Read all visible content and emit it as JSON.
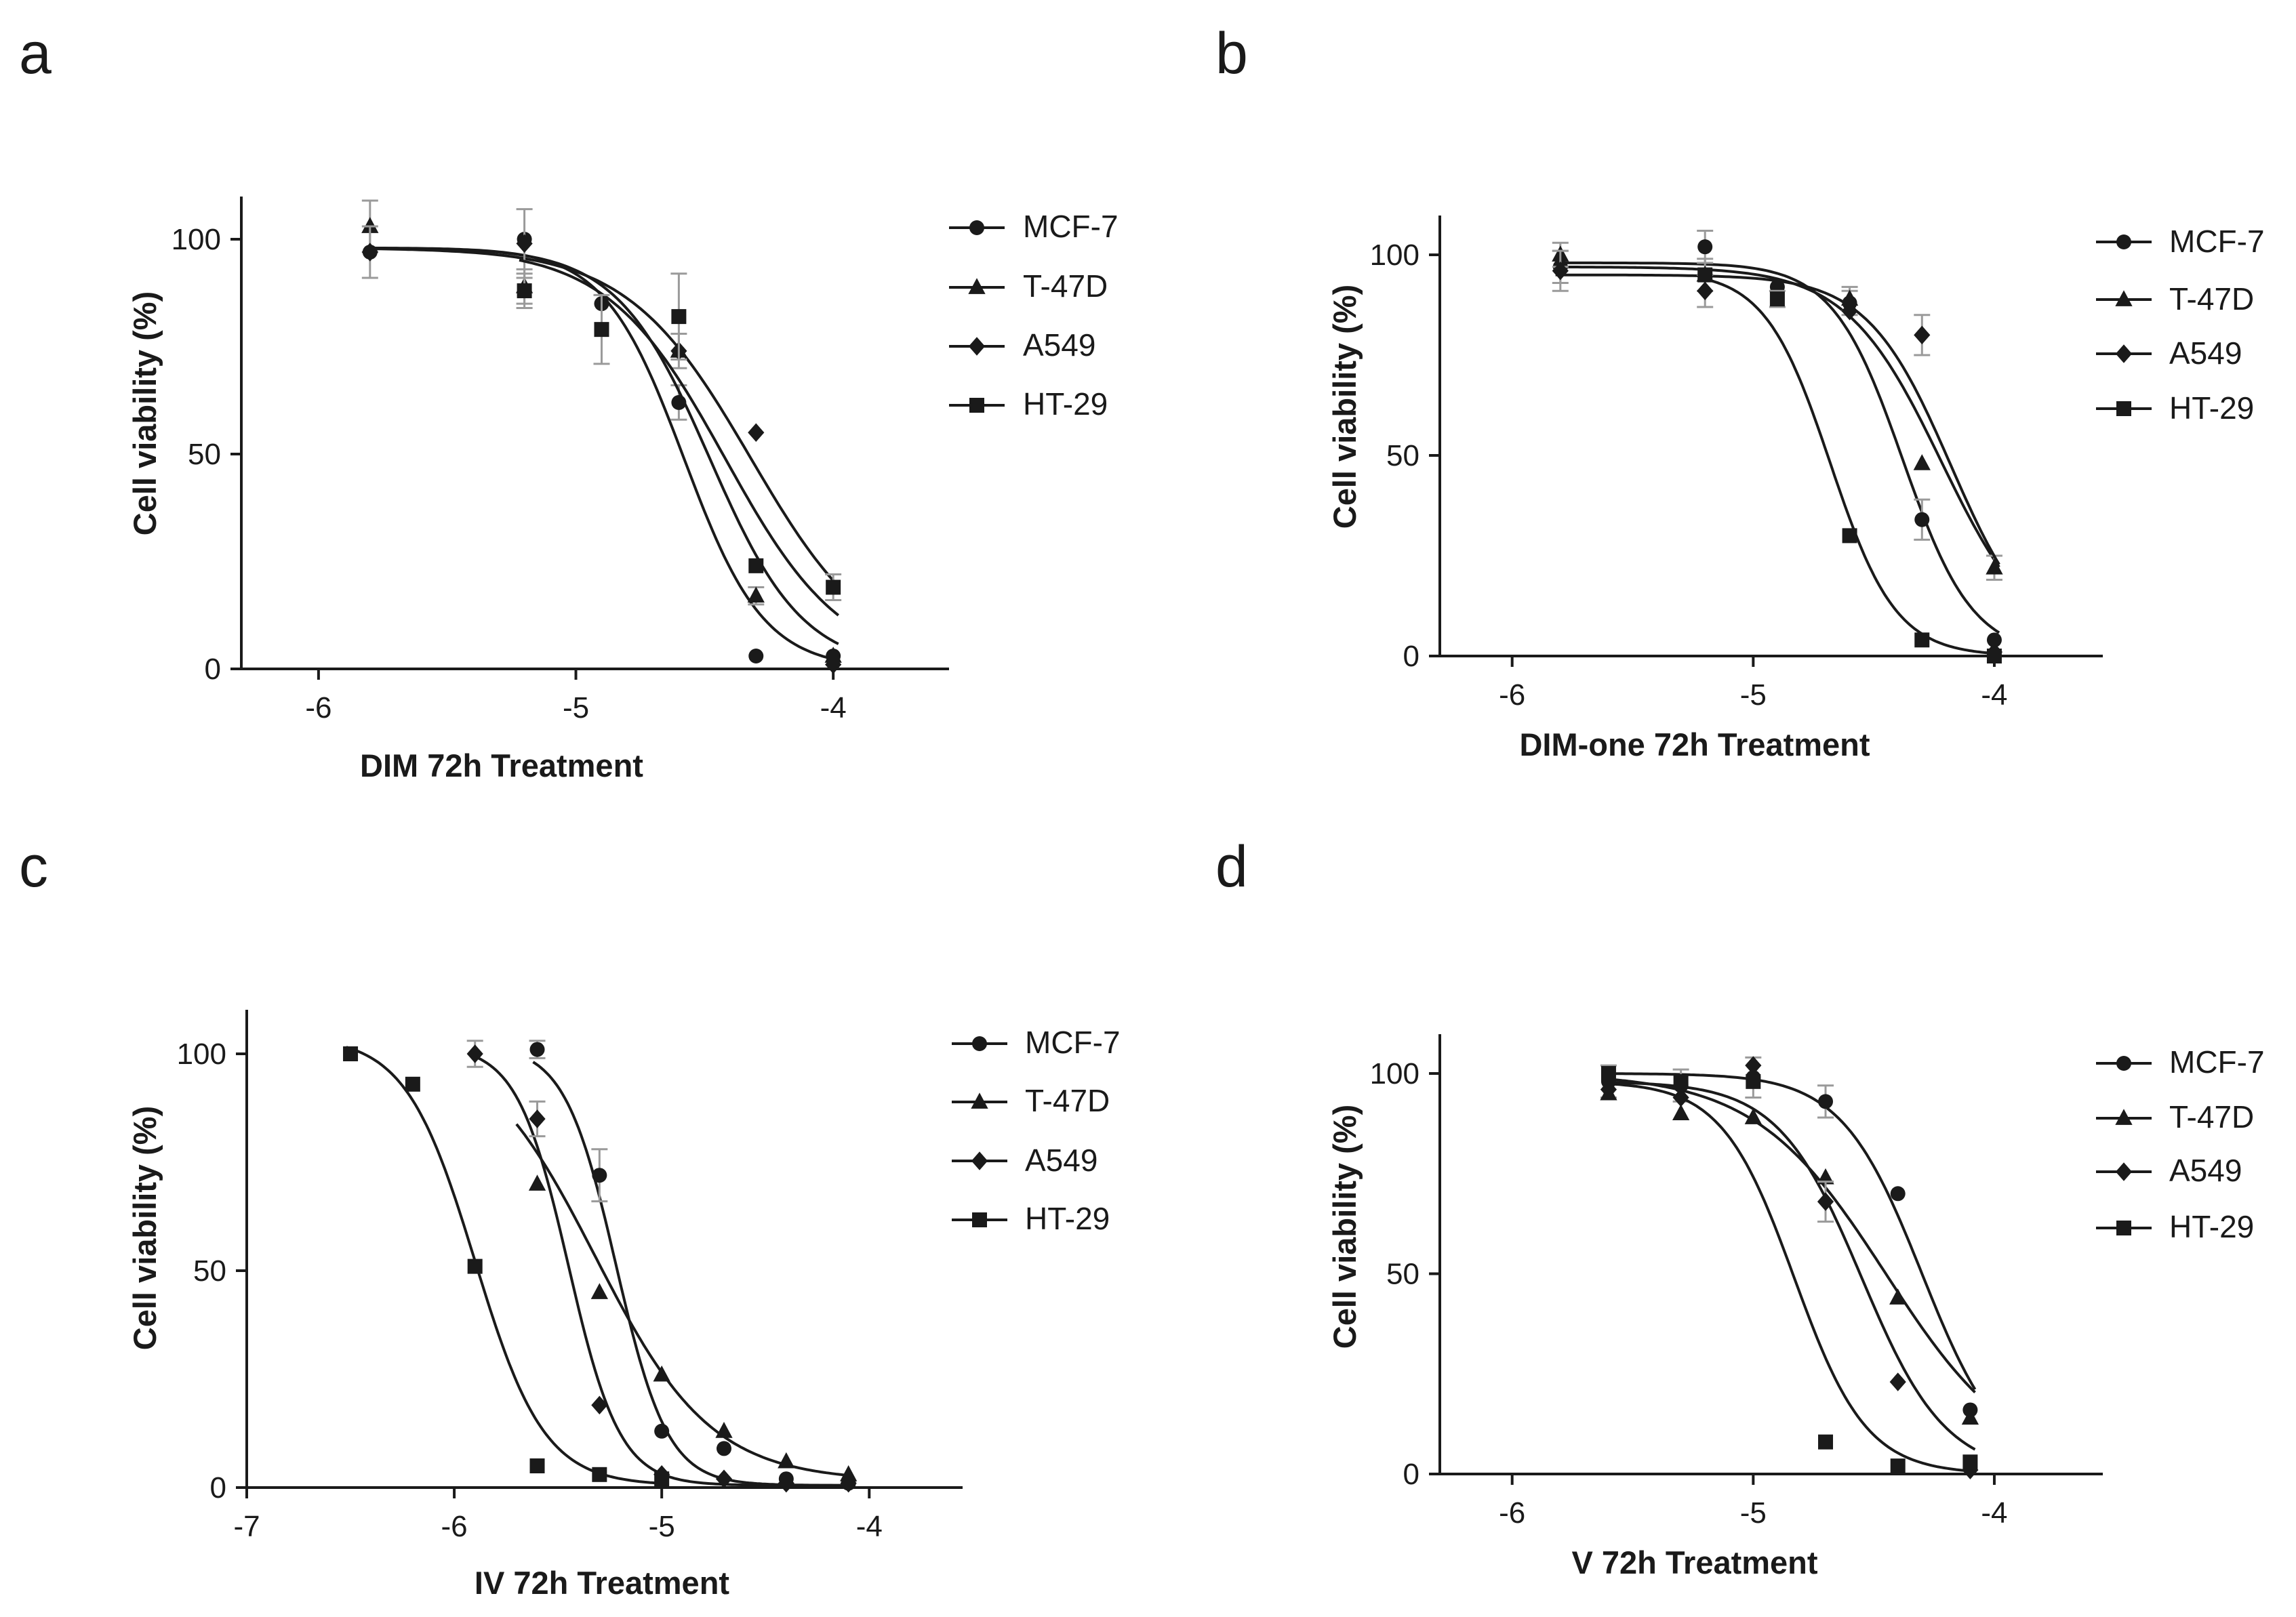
{
  "figure": {
    "panels": [
      "a",
      "b",
      "c",
      "d"
    ]
  },
  "colors": {
    "ink": "#1a1a1a",
    "error_bar": "#9a9a9a",
    "background": "#ffffff"
  },
  "chart_data": [
    {
      "panel": "a",
      "type": "scatter",
      "fit": "sigmoidal dose-response",
      "title": "",
      "xlabel": "DIM 72h Treatment",
      "ylabel": "Cell viability (%)",
      "xlim": [
        -6.3,
        -3.55
      ],
      "ylim": [
        0,
        110
      ],
      "xticks": [
        -6,
        -5,
        -4
      ],
      "yticks": [
        0,
        50,
        100
      ],
      "legend_position": "right",
      "series": [
        {
          "name": "MCF-7",
          "marker": "circle",
          "x": [
            -5.8,
            -5.2,
            -4.9,
            -4.6,
            -4.3,
            -4.0
          ],
          "y": [
            97,
            100,
            85,
            62,
            3,
            3
          ],
          "err": [
            0,
            0,
            0,
            4,
            0,
            0
          ],
          "fit": {
            "top": 98,
            "bottom": 0,
            "logec50": -4.58,
            "hill": 2.8
          }
        },
        {
          "name": "T-47D",
          "marker": "triangle",
          "x": [
            -5.8,
            -5.2,
            -4.6,
            -4.3,
            -4.0
          ],
          "y": [
            103,
            89,
            74,
            17,
            3
          ],
          "err": [
            6,
            4,
            4,
            2,
            0
          ],
          "fit": {
            "top": 98,
            "bottom": 0,
            "logec50": -4.48,
            "hill": 2.4
          }
        },
        {
          "name": "A549",
          "marker": "diamond",
          "x": [
            -5.8,
            -5.2,
            -4.6,
            -4.3,
            -4.0
          ],
          "y": [
            97,
            99,
            74,
            55,
            1
          ],
          "err": [
            6,
            8,
            0,
            0,
            0
          ],
          "fit": {
            "top": 98,
            "bottom": 0,
            "logec50": -4.32,
            "hill": 1.8
          }
        },
        {
          "name": "HT-29",
          "marker": "square",
          "x": [
            -5.2,
            -4.9,
            -4.6,
            -4.3,
            -4.0
          ],
          "y": [
            88,
            79,
            82,
            24,
            19
          ],
          "err": [
            4,
            8,
            10,
            0,
            3
          ],
          "fit": {
            "top": 98,
            "bottom": 0,
            "logec50": -4.42,
            "hill": 1.9
          }
        }
      ]
    },
    {
      "panel": "b",
      "type": "scatter",
      "fit": "sigmoidal dose-response",
      "title": "",
      "xlabel": "DIM-one 72h Treatment",
      "ylabel": "Cell viability (%)",
      "xlim": [
        -6.3,
        -3.55
      ],
      "ylim": [
        0,
        110
      ],
      "xticks": [
        -6,
        -5,
        -4
      ],
      "yticks": [
        0,
        50,
        100
      ],
      "legend_position": "right",
      "series": [
        {
          "name": "MCF-7",
          "marker": "circle",
          "x": [
            -5.8,
            -5.2,
            -4.9,
            -4.6,
            -4.3,
            -4.0
          ],
          "y": [
            97,
            102,
            92,
            88,
            34,
            4
          ],
          "err": [
            4,
            4,
            0,
            3,
            5,
            0
          ],
          "fit": {
            "top": 98,
            "bottom": 0,
            "logec50": -4.38,
            "hill": 3.0
          }
        },
        {
          "name": "T-47D",
          "marker": "triangle",
          "x": [
            -5.8,
            -5.2,
            -4.6,
            -4.3,
            -4.0
          ],
          "y": [
            100,
            95,
            89,
            48,
            22
          ],
          "err": [
            3,
            4,
            3,
            0,
            3
          ],
          "fit": {
            "top": 97,
            "bottom": 0,
            "logec50": -4.22,
            "hill": 2.2
          }
        },
        {
          "name": "A549",
          "marker": "diamond",
          "x": [
            -5.8,
            -5.2,
            -4.6,
            -4.3,
            -4.0
          ],
          "y": [
            96,
            91,
            86,
            80,
            1
          ],
          "err": [
            5,
            4,
            0,
            5,
            0
          ],
          "fit": {
            "top": 95,
            "bottom": 0,
            "logec50": -4.18,
            "hill": 2.5
          }
        },
        {
          "name": "HT-29",
          "marker": "square",
          "x": [
            -5.2,
            -4.9,
            -4.6,
            -4.3,
            -4.0
          ],
          "y": [
            95,
            89,
            30,
            4,
            0
          ],
          "err": [
            0,
            2,
            0,
            0,
            0
          ],
          "fit": {
            "top": 96,
            "bottom": 0,
            "logec50": -4.68,
            "hill": 3.2
          }
        }
      ]
    },
    {
      "panel": "c",
      "type": "scatter",
      "fit": "sigmoidal dose-response",
      "title": "",
      "xlabel": "IV 72h Treatment",
      "ylabel": "Cell viability (%)",
      "xlim": [
        -7.0,
        -3.55
      ],
      "ylim": [
        0,
        110
      ],
      "xticks": [
        -7,
        -6,
        -5,
        -4
      ],
      "yticks": [
        0,
        50,
        100
      ],
      "legend_position": "right",
      "series": [
        {
          "name": "MCF-7",
          "marker": "circle",
          "x": [
            -5.6,
            -5.3,
            -5.0,
            -4.7,
            -4.4,
            -4.1
          ],
          "y": [
            101,
            72,
            13,
            9,
            2,
            1
          ],
          "err": [
            2,
            6,
            0,
            0,
            0,
            0
          ],
          "fit": {
            "top": 102,
            "bottom": 0.5,
            "logec50": -5.22,
            "hill": 3.5
          }
        },
        {
          "name": "T-47D",
          "marker": "triangle",
          "x": [
            -5.6,
            -5.3,
            -5.0,
            -4.7,
            -4.4,
            -4.1
          ],
          "y": [
            70,
            45,
            26,
            13,
            6,
            3
          ],
          "err": [
            0,
            0,
            0,
            0,
            0,
            0
          ],
          "fit": {
            "top": 105,
            "bottom": 1.5,
            "logec50": -5.32,
            "hill": 1.55,
            "x_range": [
              -5.7,
              -4.1
            ]
          }
        },
        {
          "name": "A549",
          "marker": "diamond",
          "x": [
            -5.9,
            -5.6,
            -5.3,
            -5.0,
            -4.7,
            -4.4,
            -4.1
          ],
          "y": [
            100,
            85,
            19,
            3,
            2,
            1,
            1
          ],
          "err": [
            3,
            4,
            0,
            0,
            0,
            0,
            0
          ],
          "fit": {
            "top": 102,
            "bottom": 0.5,
            "logec50": -5.45,
            "hill": 3.5
          }
        },
        {
          "name": "HT-29",
          "marker": "square",
          "x": [
            -6.5,
            -6.2,
            -5.9,
            -5.6,
            -5.3,
            -5.0
          ],
          "y": [
            100,
            93,
            51,
            5,
            3,
            2
          ],
          "err": [
            0,
            0,
            0,
            0,
            0,
            0
          ],
          "fit": {
            "top": 104,
            "bottom": 0.5,
            "logec50": -5.9,
            "hill": 2.6
          }
        }
      ]
    },
    {
      "panel": "d",
      "type": "scatter",
      "fit": "sigmoidal dose-response",
      "title": "",
      "xlabel": "V 72h Treatment",
      "ylabel": "Cell viability (%)",
      "xlim": [
        -6.3,
        -3.55
      ],
      "ylim": [
        0,
        110
      ],
      "xticks": [
        -6,
        -5,
        -4
      ],
      "yticks": [
        0,
        50,
        100
      ],
      "legend_position": "right",
      "series": [
        {
          "name": "MCF-7",
          "marker": "circle",
          "x": [
            -5.6,
            -5.3,
            -5.0,
            -4.7,
            -4.4,
            -4.1
          ],
          "y": [
            98,
            97,
            99,
            93,
            70,
            16
          ],
          "err": [
            4,
            4,
            5,
            4,
            0,
            0
          ],
          "fit": {
            "top": 100,
            "bottom": 0,
            "logec50": -4.3,
            "hill": 2.6
          }
        },
        {
          "name": "T-47D",
          "marker": "triangle",
          "x": [
            -5.6,
            -5.3,
            -5.0,
            -4.7,
            -4.4,
            -4.1
          ],
          "y": [
            95,
            90,
            89,
            74,
            44,
            14
          ],
          "err": [
            0,
            0,
            0,
            0,
            0,
            0
          ],
          "fit": {
            "top": 100,
            "bottom": 0,
            "logec50": -4.45,
            "hill": 1.6
          }
        },
        {
          "name": "A549",
          "marker": "diamond",
          "x": [
            -5.6,
            -5.3,
            -5.0,
            -4.7,
            -4.4,
            -4.1
          ],
          "y": [
            96,
            94,
            102,
            68,
            23,
            1
          ],
          "err": [
            0,
            0,
            0,
            5,
            0,
            0
          ],
          "fit": {
            "top": 98,
            "bottom": 0,
            "logec50": -4.55,
            "hill": 2.5
          }
        },
        {
          "name": "HT-29",
          "marker": "square",
          "x": [
            -5.6,
            -5.3,
            -5.0,
            -4.7,
            -4.4,
            -4.1
          ],
          "y": [
            100,
            98,
            98,
            8,
            2,
            3
          ],
          "err": [
            0,
            0,
            0,
            0,
            0,
            0
          ],
          "fit": {
            "top": 98,
            "bottom": 0,
            "logec50": -4.83,
            "hill": 2.9
          }
        }
      ]
    }
  ]
}
